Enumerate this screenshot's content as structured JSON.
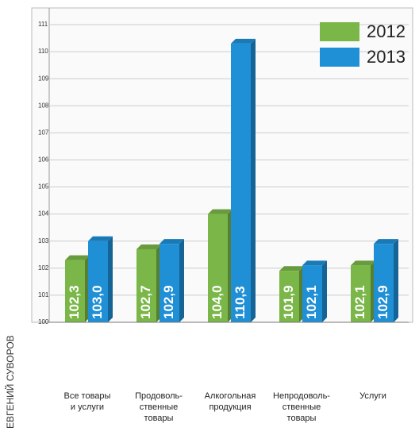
{
  "chart_data": {
    "type": "bar",
    "categories": [
      "Все товары\nи услуги",
      "Продоволь-\nственные\nтовары",
      "Алкогольная\nпродукция",
      "Непродоволь-\nственные\nтовары",
      "Услуги"
    ],
    "series": [
      {
        "name": "2012",
        "color": "#7ab648",
        "values": [
          102.3,
          102.7,
          104.0,
          101.9,
          102.1
        ],
        "value_labels": [
          "102,3",
          "102,7",
          "104,0",
          "101,9",
          "102,1"
        ]
      },
      {
        "name": "2013",
        "color": "#1f8fd6",
        "values": [
          103.0,
          102.9,
          110.3,
          102.1,
          102.9
        ],
        "value_labels": [
          "103,0",
          "102,9",
          "110,3",
          "102,1",
          "102,9"
        ]
      }
    ],
    "ylim": [
      100,
      111
    ],
    "yticks": [
      100,
      101,
      102,
      103,
      104,
      105,
      106,
      107,
      108,
      109,
      110,
      111
    ],
    "grid": true,
    "legend": "top-right",
    "credit": "ЕВГЕНИЙ СУВОРОВ"
  }
}
